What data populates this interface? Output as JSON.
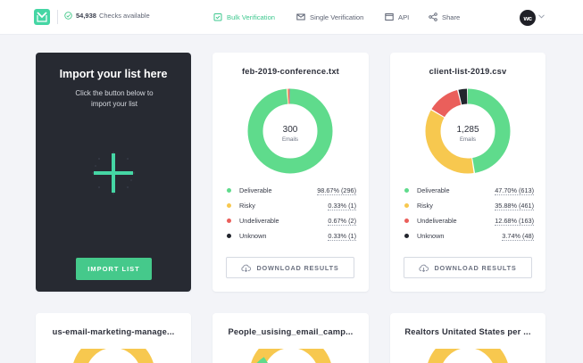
{
  "header": {
    "checks_count": "54,938",
    "checks_label": "Checks available",
    "nav": [
      {
        "label": "Bulk Verification",
        "icon": "clipboard-check-icon",
        "active": true
      },
      {
        "label": "Single Verification",
        "icon": "envelope-icon",
        "active": false
      },
      {
        "label": "API",
        "icon": "code-window-icon",
        "active": false
      },
      {
        "label": "Share",
        "icon": "share-icon",
        "active": false
      }
    ],
    "avatar_initials": "wc"
  },
  "import_card": {
    "title": "Import your list here",
    "subtitle": "Click the button below to import your list",
    "button": "IMPORT LIST"
  },
  "legend_labels": [
    "Deliverable",
    "Risky",
    "Undeliverable",
    "Unknown"
  ],
  "colors": {
    "deliverable": "#5fdb8c",
    "risky": "#f7c84f",
    "undeliverable": "#ea5f5b",
    "unknown": "#22252d",
    "accent": "#45c98b"
  },
  "result_cards": [
    {
      "file": "feb-2019-conference.txt",
      "total": "300",
      "total_label": "Emails",
      "stats": [
        "98.67% (296)",
        "0.33% (1)",
        "0.67% (2)",
        "0.33% (1)"
      ],
      "fractions": [
        0.9867,
        0.0033,
        0.0067,
        0.0033
      ],
      "button": "DOWNLOAD RESULTS"
    },
    {
      "file": "client-list-2019.csv",
      "total": "1,285",
      "total_label": "Emails",
      "stats": [
        "47.70% (613)",
        "35.88% (461)",
        "12.68% (163)",
        "3.74% (48)"
      ],
      "fractions": [
        0.477,
        0.3588,
        0.1268,
        0.0374
      ],
      "button": "DOWNLOAD RESULTS"
    }
  ],
  "bottom_cards": [
    "us-email-marketing-manage...",
    "People_usising_email_camp...",
    "Realtors Unitated States per ..."
  ]
}
